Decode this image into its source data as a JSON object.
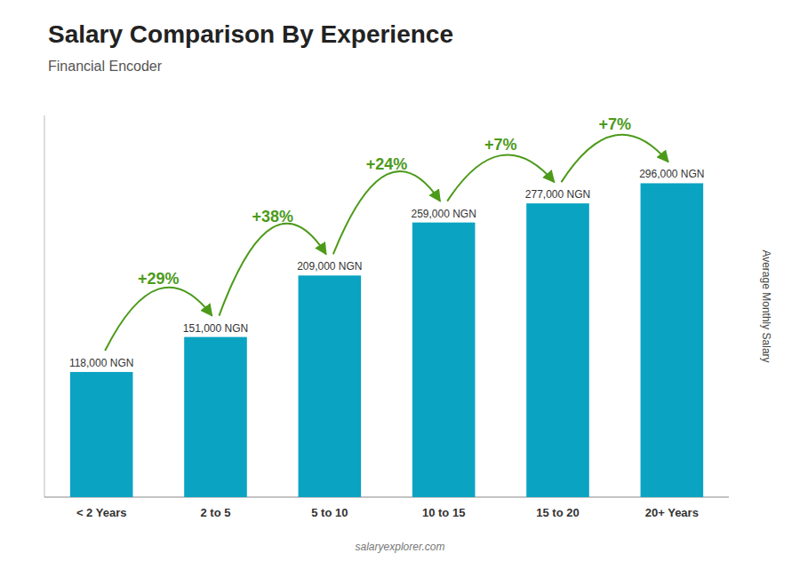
{
  "chart_data": {
    "type": "bar",
    "title": "Salary Comparison By Experience",
    "subtitle": "Financial Encoder",
    "categories": [
      "< 2 Years",
      "2 to 5",
      "5 to 10",
      "10 to 15",
      "15 to 20",
      "20+ Years"
    ],
    "values": [
      118000,
      151000,
      209000,
      259000,
      277000,
      296000
    ],
    "value_labels": [
      "118,000 NGN",
      "151,000 NGN",
      "209,000 NGN",
      "259,000 NGN",
      "277,000 NGN",
      "296,000 NGN"
    ],
    "data_labels": true,
    "annotations": [
      "+29%",
      "+38%",
      "+24%",
      "+7%",
      "+7%"
    ],
    "ylabel": "Average Monthly Salary",
    "watermark": "salaryexplorer.com",
    "color": "#0aa3c2",
    "ylim": [
      0,
      360000
    ],
    "grid": false,
    "tick_labels": "x"
  }
}
